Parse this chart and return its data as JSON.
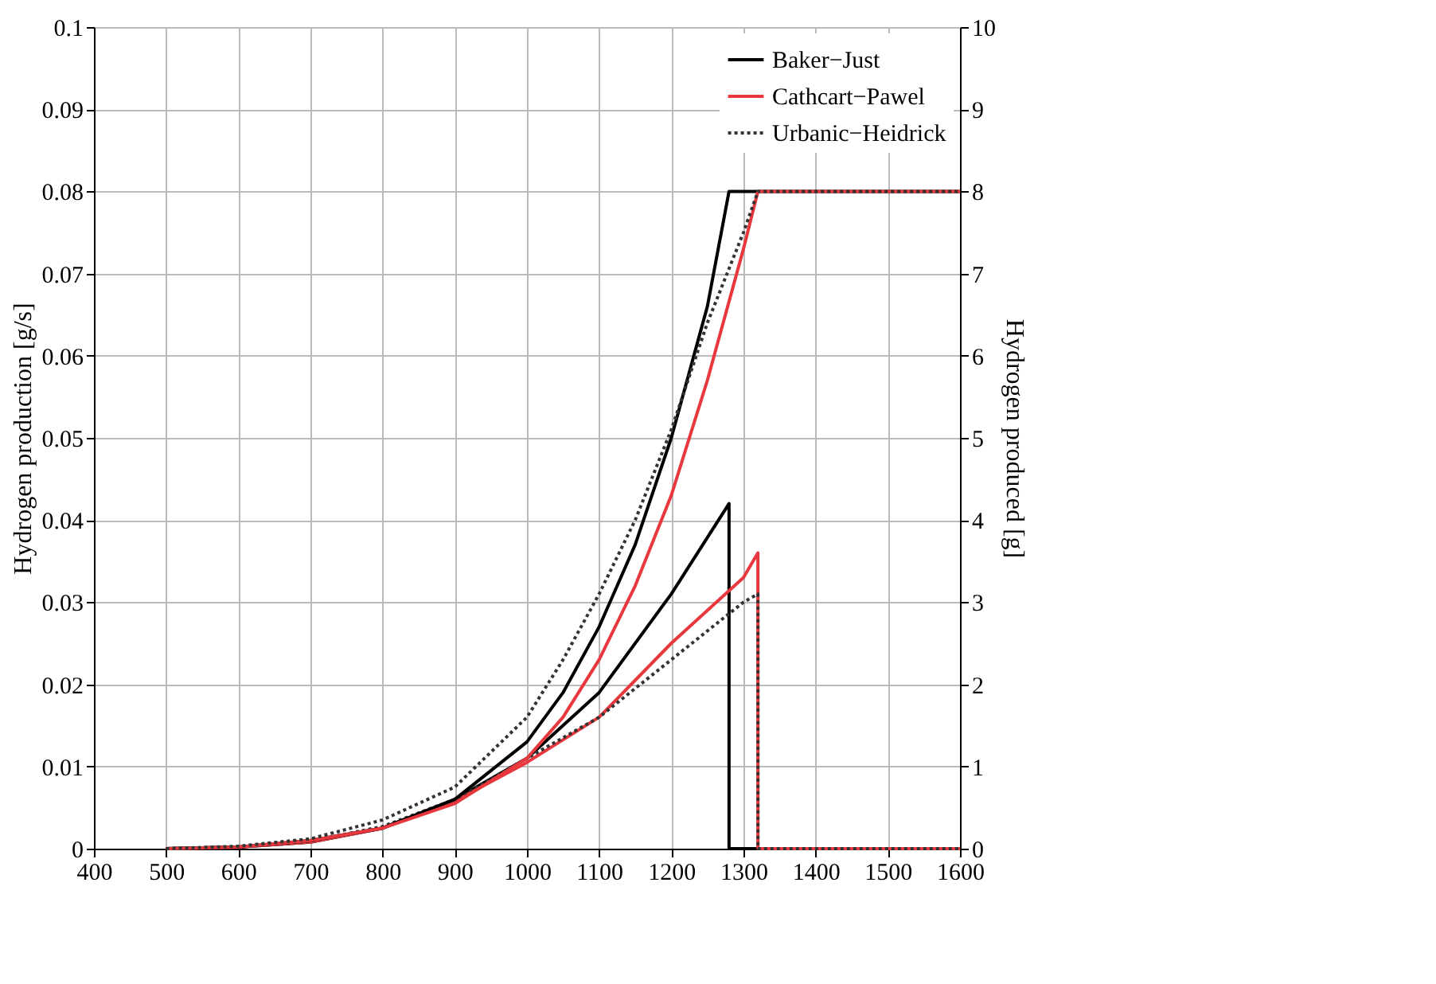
{
  "chart_data": {
    "type": "line",
    "xlim": [
      400,
      1600
    ],
    "xticks": [
      400,
      500,
      600,
      700,
      800,
      900,
      1000,
      1100,
      1200,
      1300,
      1400,
      1500,
      1600
    ],
    "ylim": [
      0,
      0.1
    ],
    "yticks": [
      0,
      0.01,
      0.02,
      0.03,
      0.04,
      0.05,
      0.06,
      0.07,
      0.08,
      0.09,
      0.1
    ],
    "y2lim": [
      0,
      10
    ],
    "y2ticks": [
      0,
      1,
      2,
      3,
      4,
      5,
      6,
      7,
      8,
      9,
      10
    ],
    "ylabel": "Hydrogen production [g/s]",
    "y2label": "Hydrogen produced [g]",
    "grid": true,
    "legend": "top right",
    "series": [
      {
        "name": "Baker−Just",
        "color": "#000000",
        "line_style": "solid",
        "x": [
          500,
          600,
          700,
          800,
          900,
          1000,
          1100,
          1200,
          1280,
          1280,
          1600
        ],
        "values": [
          0,
          0.0002,
          0.0008,
          0.0025,
          0.006,
          0.011,
          0.019,
          0.031,
          0.042,
          0,
          0
        ]
      },
      {
        "name": "Cathcart−Pawel",
        "color": "#e8383d",
        "line_style": "solid",
        "x": [
          500,
          600,
          700,
          800,
          900,
          1000,
          1100,
          1200,
          1300,
          1320,
          1320,
          1600
        ],
        "values": [
          0,
          0.0002,
          0.0008,
          0.0025,
          0.0058,
          0.0105,
          0.016,
          0.025,
          0.033,
          0.036,
          0,
          0
        ]
      },
      {
        "name": "Urbanic−Heidrick",
        "color": "#333333",
        "line_style": "dotted",
        "x": [
          500,
          600,
          700,
          800,
          900,
          1000,
          1100,
          1200,
          1300,
          1320,
          1320,
          1600
        ],
        "values": [
          0,
          0.0002,
          0.0009,
          0.0027,
          0.006,
          0.011,
          0.016,
          0.023,
          0.03,
          0.031,
          0,
          0
        ]
      },
      {
        "color": "#000000",
        "line_style": "solid",
        "axis": "y2",
        "x": [
          500,
          600,
          700,
          800,
          900,
          1000,
          1050,
          1100,
          1150,
          1200,
          1250,
          1280,
          1600
        ],
        "values": [
          0,
          0.02,
          0.1,
          0.25,
          0.6,
          1.3,
          1.9,
          2.7,
          3.7,
          5.0,
          6.6,
          8.0,
          8.0
        ]
      },
      {
        "color": "#e8383d",
        "line_style": "solid",
        "axis": "y2",
        "x": [
          500,
          600,
          700,
          800,
          900,
          1000,
          1050,
          1100,
          1150,
          1200,
          1250,
          1300,
          1320,
          1600
        ],
        "values": [
          0,
          0.02,
          0.1,
          0.25,
          0.55,
          1.1,
          1.6,
          2.3,
          3.2,
          4.3,
          5.7,
          7.3,
          8.0,
          8.0
        ]
      },
      {
        "color": "#333333",
        "line_style": "dotted",
        "axis": "y2",
        "x": [
          500,
          600,
          700,
          800,
          900,
          1000,
          1050,
          1100,
          1150,
          1200,
          1250,
          1300,
          1320,
          1600
        ],
        "values": [
          0,
          0.03,
          0.12,
          0.35,
          0.75,
          1.6,
          2.3,
          3.1,
          4.0,
          5.1,
          6.4,
          7.5,
          8.0,
          8.0
        ]
      }
    ]
  }
}
